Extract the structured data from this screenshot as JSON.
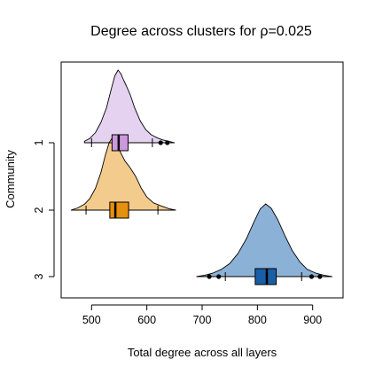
{
  "chart_data": {
    "type": "violin-boxplot",
    "title": "Degree across clusters for ρ=0.025",
    "xlabel": "Total degree across all layers",
    "ylabel": "Community",
    "xlim": [
      445,
      955
    ],
    "x_ticks": [
      500,
      600,
      700,
      800,
      900
    ],
    "categories": [
      "1",
      "2",
      "3"
    ],
    "series": [
      {
        "name": "1",
        "color": "#cc99dd",
        "fill": "#e2cdee",
        "density_x": [
          487,
          497,
          507,
          517,
          527,
          535,
          542,
          548,
          553,
          558,
          563,
          570,
          578,
          588,
          598,
          608,
          618,
          628,
          640,
          650
        ],
        "density_h": [
          0.02,
          0.06,
          0.14,
          0.28,
          0.48,
          0.72,
          0.92,
          1.0,
          0.95,
          0.86,
          0.78,
          0.66,
          0.48,
          0.3,
          0.18,
          0.11,
          0.07,
          0.04,
          0.02,
          0.0
        ],
        "q1": 537,
        "median": 549,
        "q3": 566,
        "whisker_low": 500,
        "whisker_high": 610,
        "outliers": [
          625,
          637
        ]
      },
      {
        "name": "2",
        "color": "#e6900f",
        "fill": "#f2c57f",
        "density_x": [
          463,
          475,
          487,
          497,
          507,
          517,
          525,
          532,
          538,
          545,
          552,
          560,
          570,
          580,
          590,
          600,
          612,
          625,
          640,
          652
        ],
        "density_h": [
          0.0,
          0.03,
          0.08,
          0.16,
          0.3,
          0.52,
          0.76,
          0.93,
          1.0,
          0.93,
          0.8,
          0.68,
          0.58,
          0.46,
          0.3,
          0.18,
          0.1,
          0.06,
          0.02,
          0.0
        ],
        "q1": 533,
        "median": 543,
        "q3": 567,
        "whisker_low": 490,
        "whisker_high": 620,
        "outliers": []
      },
      {
        "name": "3",
        "color": "#1a5fa5",
        "fill": "#7fa8d1",
        "density_x": [
          690,
          705,
          720,
          735,
          750,
          765,
          780,
          793,
          805,
          815,
          825,
          837,
          850,
          863,
          877,
          890,
          905,
          920,
          935
        ],
        "density_h": [
          0.0,
          0.02,
          0.05,
          0.1,
          0.18,
          0.32,
          0.52,
          0.74,
          0.93,
          1.0,
          0.94,
          0.78,
          0.56,
          0.36,
          0.2,
          0.1,
          0.05,
          0.02,
          0.0
        ],
        "q1": 796,
        "median": 817,
        "q3": 834,
        "whisker_low": 742,
        "whisker_high": 880,
        "outliers": [
          713,
          730,
          898,
          913
        ]
      }
    ]
  }
}
